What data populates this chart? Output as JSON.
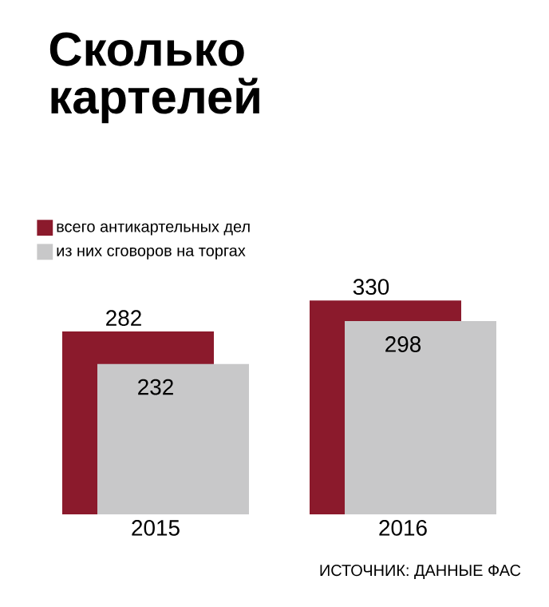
{
  "chart_data": {
    "type": "bar",
    "title": "Сколько картелей",
    "categories": [
      "2015",
      "2016"
    ],
    "series": [
      {
        "name": "всего антикартельных дел",
        "color": "#8b1a2c",
        "values": [
          282,
          330
        ]
      },
      {
        "name": "из них сговоров на торгах",
        "color": "#c8c8c9",
        "values": [
          232,
          298
        ]
      }
    ],
    "data_labels": true,
    "legend": "top left",
    "annotations": [
      "ИСТОЧНИК: ДАННЫЕ ФАС"
    ]
  }
}
